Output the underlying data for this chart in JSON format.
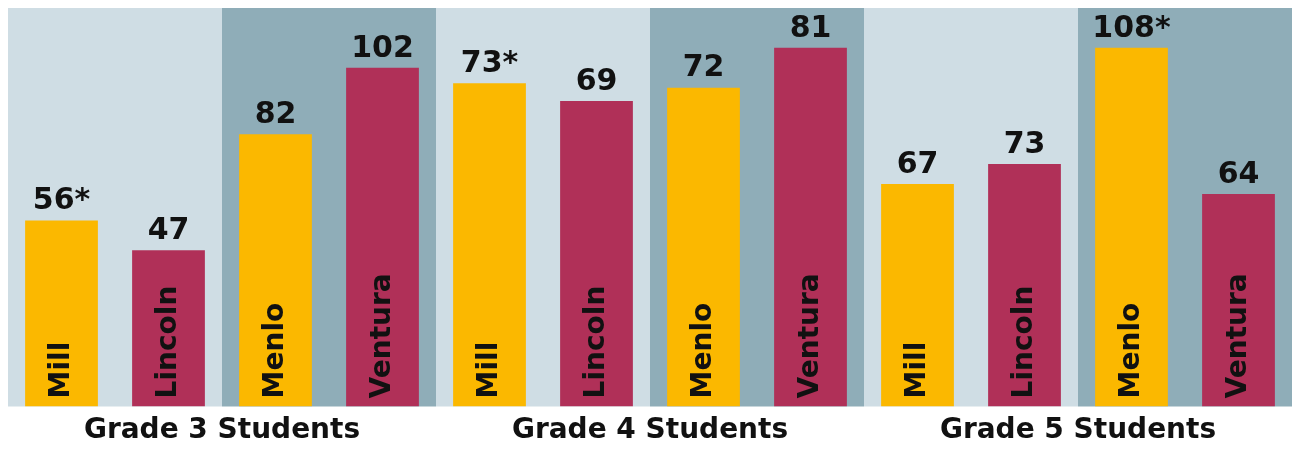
{
  "chart_data": [
    {
      "type": "bar",
      "xlabel": "Grade 3 Students",
      "categories": [
        "Mill",
        "Lincoln",
        "Menlo",
        "Ventura"
      ],
      "values": [
        56,
        47,
        82,
        102
      ],
      "colors": [
        "#fbb800",
        "#b03058",
        "#fbb800",
        "#b03058"
      ],
      "value_labels": [
        "56*",
        "47",
        "82",
        "102"
      ],
      "legend": false,
      "grid": false,
      "bands": [
        {
          "axis": "x",
          "from": "Mill",
          "to": "Lincoln",
          "color": "#cfdde4"
        },
        {
          "axis": "x",
          "from": "Menlo",
          "to": "Ventura",
          "color": "#8fadb8"
        }
      ]
    },
    {
      "type": "bar",
      "xlabel": "Grade 4 Students",
      "categories": [
        "Mill",
        "Lincoln",
        "Menlo",
        "Ventura"
      ],
      "values": [
        73,
        69,
        72,
        81
      ],
      "colors": [
        "#fbb800",
        "#b03058",
        "#fbb800",
        "#b03058"
      ],
      "value_labels": [
        "73*",
        "69",
        "72",
        "81"
      ],
      "legend": false,
      "grid": false,
      "bands": [
        {
          "axis": "x",
          "from": "Mill",
          "to": "Lincoln",
          "color": "#cfdde4"
        },
        {
          "axis": "x",
          "from": "Menlo",
          "to": "Ventura",
          "color": "#8fadb8"
        }
      ]
    },
    {
      "type": "bar",
      "xlabel": "Grade 5 Students",
      "categories": [
        "Mill",
        "Lincoln",
        "Menlo",
        "Ventura"
      ],
      "values": [
        67,
        73,
        108,
        64
      ],
      "colors": [
        "#fbb800",
        "#b03058",
        "#fbb800",
        "#b03058"
      ],
      "value_labels": [
        "67",
        "73",
        "108*",
        "64"
      ],
      "legend": false,
      "grid": false,
      "bands": [
        {
          "axis": "x",
          "from": "Mill",
          "to": "Lincoln",
          "color": "#cfdde4"
        },
        {
          "axis": "x",
          "from": "Menlo",
          "to": "Ventura",
          "color": "#8fadb8"
        }
      ]
    }
  ]
}
